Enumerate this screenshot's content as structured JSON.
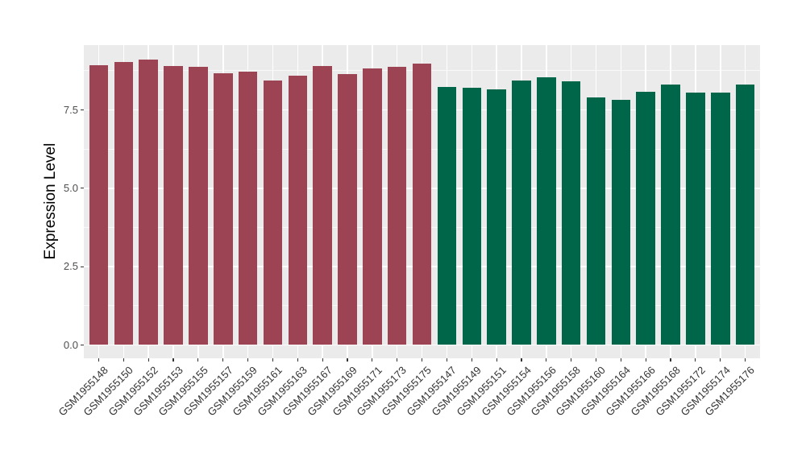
{
  "chart_data": {
    "type": "bar",
    "title": "",
    "xlabel": "",
    "ylabel": "Expression Level",
    "ylim": [
      0,
      9.58
    ],
    "grid": "on",
    "legend": "none",
    "panel_background": "#EBEBEB",
    "gridline_color": "#FFFFFF",
    "yticks": [
      {
        "value": 0.0,
        "label": "0.0"
      },
      {
        "value": 2.5,
        "label": "2.5"
      },
      {
        "value": 5.0,
        "label": "5.0"
      },
      {
        "value": 7.5,
        "label": "7.5"
      }
    ],
    "yticks_minor": [
      1.25,
      3.75,
      6.25,
      8.75
    ],
    "groups": [
      {
        "id": "group-left",
        "color": "#9C4453"
      },
      {
        "id": "group-right",
        "color": "#00664A"
      }
    ],
    "bars": [
      {
        "label": "GSM1955148",
        "value": 8.94,
        "group": 0
      },
      {
        "label": "GSM1955150",
        "value": 9.04,
        "group": 0
      },
      {
        "label": "GSM1955152",
        "value": 9.12,
        "group": 0
      },
      {
        "label": "GSM1955153",
        "value": 8.91,
        "group": 0
      },
      {
        "label": "GSM1955155",
        "value": 8.87,
        "group": 0
      },
      {
        "label": "GSM1955157",
        "value": 8.68,
        "group": 0
      },
      {
        "label": "GSM1955159",
        "value": 8.72,
        "group": 0
      },
      {
        "label": "GSM1955161",
        "value": 8.44,
        "group": 0
      },
      {
        "label": "GSM1955163",
        "value": 8.59,
        "group": 0
      },
      {
        "label": "GSM1955167",
        "value": 8.91,
        "group": 0
      },
      {
        "label": "GSM1955169",
        "value": 8.65,
        "group": 0
      },
      {
        "label": "GSM1955171",
        "value": 8.83,
        "group": 0
      },
      {
        "label": "GSM1955173",
        "value": 8.88,
        "group": 0
      },
      {
        "label": "GSM1955175",
        "value": 8.98,
        "group": 0
      },
      {
        "label": "GSM1955147",
        "value": 8.24,
        "group": 1
      },
      {
        "label": "GSM1955149",
        "value": 8.22,
        "group": 1
      },
      {
        "label": "GSM1955151",
        "value": 8.15,
        "group": 1
      },
      {
        "label": "GSM1955154",
        "value": 8.44,
        "group": 1
      },
      {
        "label": "GSM1955156",
        "value": 8.54,
        "group": 1
      },
      {
        "label": "GSM1955158",
        "value": 8.41,
        "group": 1
      },
      {
        "label": "GSM1955160",
        "value": 7.9,
        "group": 1
      },
      {
        "label": "GSM1955164",
        "value": 7.82,
        "group": 1
      },
      {
        "label": "GSM1955166",
        "value": 8.07,
        "group": 1
      },
      {
        "label": "GSM1955168",
        "value": 8.31,
        "group": 1
      },
      {
        "label": "GSM1955172",
        "value": 8.06,
        "group": 1
      },
      {
        "label": "GSM1955174",
        "value": 8.06,
        "group": 1
      },
      {
        "label": "GSM1955176",
        "value": 8.31,
        "group": 1
      }
    ]
  }
}
